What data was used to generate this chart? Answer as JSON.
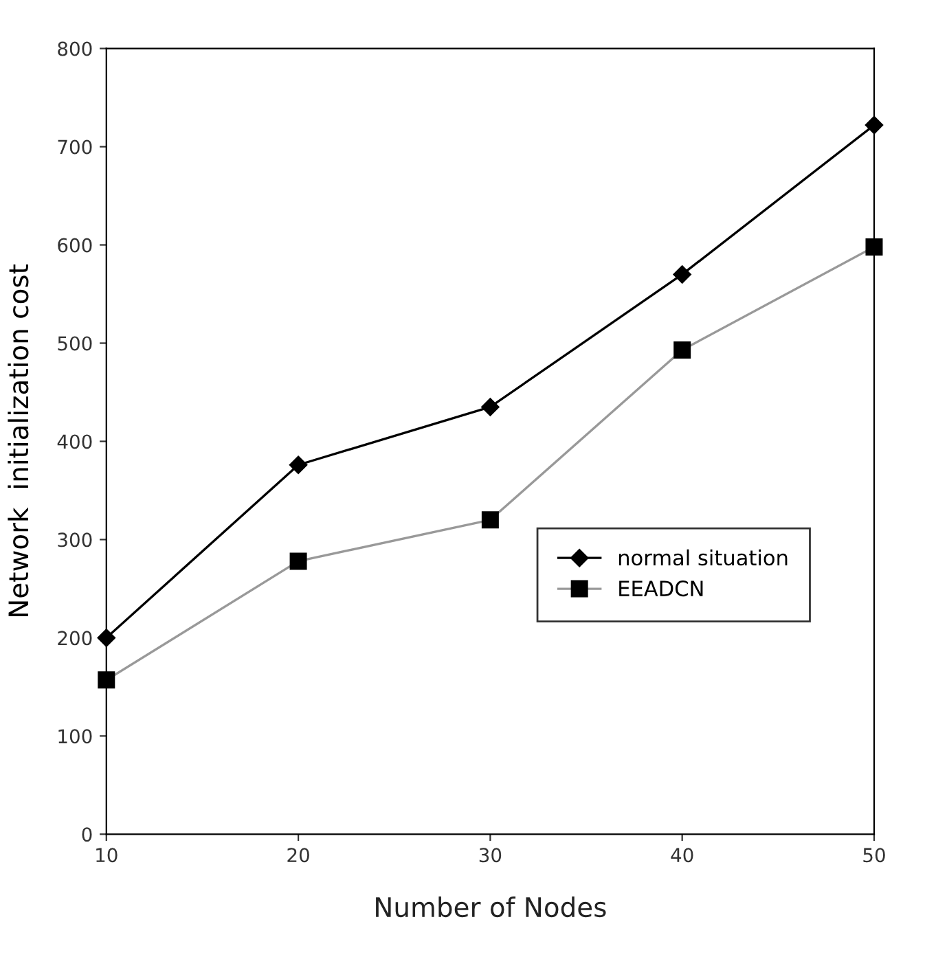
{
  "chart_data": {
    "type": "line",
    "xlabel": "Number of Nodes",
    "ylabel": "Network  initialization cost",
    "x": [
      10,
      20,
      30,
      40,
      50
    ],
    "series": [
      {
        "name": "normal situation",
        "color": "#000000",
        "marker": "diamond",
        "values": [
          200,
          376,
          435,
          570,
          722
        ]
      },
      {
        "name": "EEADCN",
        "color": "#999999",
        "marker": "square",
        "values": [
          157,
          278,
          320,
          493,
          598
        ]
      }
    ],
    "xlim": [
      10,
      50
    ],
    "xticks": [
      10,
      20,
      30,
      40,
      50
    ],
    "ylim": [
      0,
      800
    ],
    "yticks": [
      0,
      100,
      200,
      300,
      400,
      500,
      600,
      700,
      800
    ],
    "grid": false,
    "legend": "right",
    "line_style": "solid"
  }
}
